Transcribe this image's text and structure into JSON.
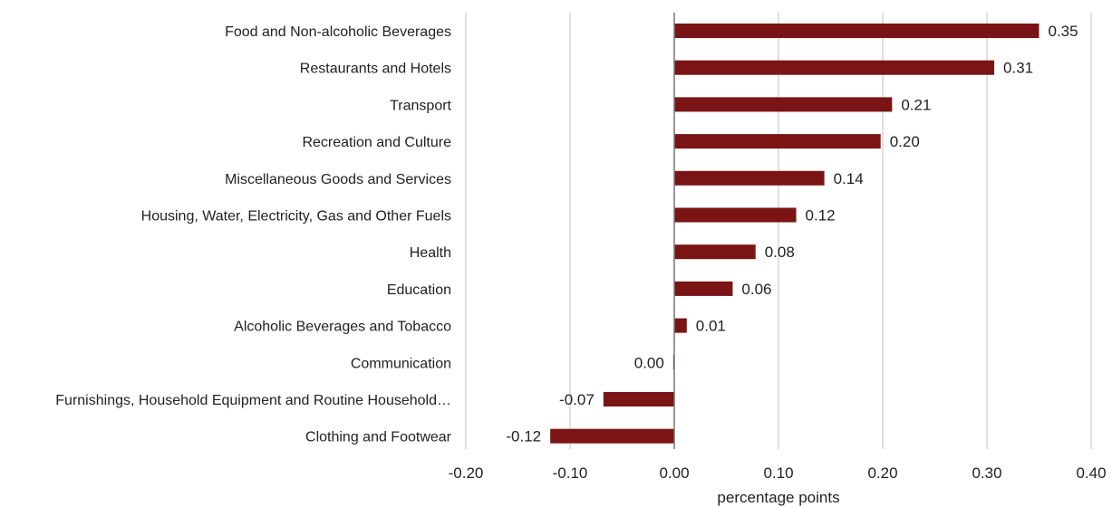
{
  "chart_data": {
    "type": "bar",
    "orientation": "horizontal",
    "categories": [
      "Food and Non-alcoholic Beverages",
      "Restaurants and Hotels",
      "Transport",
      "Recreation and Culture",
      "Miscellaneous Goods and Services",
      "Housing, Water, Electricity, Gas and Other Fuels",
      "Health",
      "Education",
      "Alcoholic Beverages and Tobacco",
      "Communication",
      "Furnishings, Household Equipment and Routine Household…",
      "Clothing and Footwear"
    ],
    "values": [
      0.35,
      0.31,
      0.21,
      0.2,
      0.14,
      0.12,
      0.08,
      0.06,
      0.01,
      0.0,
      -0.07,
      -0.12
    ],
    "bar_values": [
      0.35,
      0.307,
      0.209,
      0.198,
      0.144,
      0.117,
      0.078,
      0.056,
      0.012,
      -0.001,
      -0.068,
      -0.119
    ],
    "value_labels": [
      "0.35",
      "0.31",
      "0.21",
      "0.20",
      "0.14",
      "0.12",
      "0.08",
      "0.06",
      "0.01",
      "0.00",
      "-0.07",
      "-0.12"
    ],
    "xlim": [
      -0.2,
      0.4
    ],
    "x_ticks": [
      -0.2,
      -0.1,
      0.0,
      0.1,
      0.2,
      0.3,
      0.4
    ],
    "x_tick_labels": [
      "-0.20",
      "-0.10",
      "0.00",
      "0.10",
      "0.20",
      "0.30",
      "0.40"
    ],
    "xlabel": "percentage points",
    "ylabel": "",
    "title": "",
    "grid": "vertical",
    "legend": "none",
    "bar_color": "#7b1414",
    "grid_color": "#d6d6d6",
    "zero_line_color": "#777777"
  }
}
